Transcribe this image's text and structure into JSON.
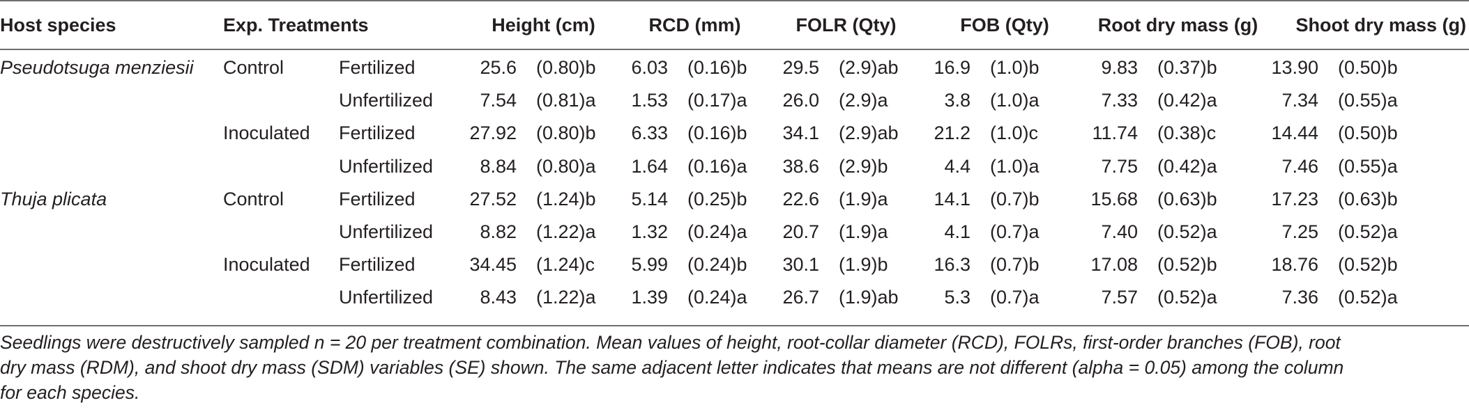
{
  "headers": {
    "host_species": "Host species",
    "treatments": "Exp. Treatments",
    "height": "Height (cm)",
    "rcd": "RCD (mm)",
    "folr": "FOLR (Qty)",
    "fob": "FOB (Qty)",
    "root": "Root dry mass (g)",
    "shoot": "Shoot dry mass (g)"
  },
  "rows": [
    {
      "species": "Pseudotsuga menziesii",
      "treatment": "Control",
      "fert": "Fertilized",
      "h": "25.6",
      "h_se": "(0.80)b",
      "rcd": "6.03",
      "rcd_se": "(0.16)b",
      "folr": "29.5",
      "folr_se": "(2.9)ab",
      "fob": "16.9",
      "fob_se": "(1.0)b",
      "root": "9.83",
      "root_se": "(0.37)b",
      "shoot": "13.90",
      "shoot_se": "(0.50)b"
    },
    {
      "species": "",
      "treatment": "",
      "fert": "Unfertilized",
      "h": "7.54",
      "h_se": "(0.81)a",
      "rcd": "1.53",
      "rcd_se": "(0.17)a",
      "folr": "26.0",
      "folr_se": "(2.9)a",
      "fob": "3.8",
      "fob_se": "(1.0)a",
      "root": "7.33",
      "root_se": "(0.42)a",
      "shoot": "7.34",
      "shoot_se": "(0.55)a"
    },
    {
      "species": "",
      "treatment": "Inoculated",
      "fert": "Fertilized",
      "h": "27.92",
      "h_se": "(0.80)b",
      "rcd": "6.33",
      "rcd_se": "(0.16)b",
      "folr": "34.1",
      "folr_se": "(2.9)ab",
      "fob": "21.2",
      "fob_se": "(1.0)c",
      "root": "11.74",
      "root_se": "(0.38)c",
      "shoot": "14.44",
      "shoot_se": "(0.50)b"
    },
    {
      "species": "",
      "treatment": "",
      "fert": "Unfertilized",
      "h": "8.84",
      "h_se": "(0.80)a",
      "rcd": "1.64",
      "rcd_se": "(0.16)a",
      "folr": "38.6",
      "folr_se": "(2.9)b",
      "fob": "4.4",
      "fob_se": "(1.0)a",
      "root": "7.75",
      "root_se": "(0.42)a",
      "shoot": "7.46",
      "shoot_se": "(0.55)a"
    },
    {
      "species": "Thuja plicata",
      "treatment": "Control",
      "fert": "Fertilized",
      "h": "27.52",
      "h_se": "(1.24)b",
      "rcd": "5.14",
      "rcd_se": "(0.25)b",
      "folr": "22.6",
      "folr_se": "(1.9)a",
      "fob": "14.1",
      "fob_se": "(0.7)b",
      "root": "15.68",
      "root_se": "(0.63)b",
      "shoot": "17.23",
      "shoot_se": "(0.63)b"
    },
    {
      "species": "",
      "treatment": "",
      "fert": "Unfertilized",
      "h": "8.82",
      "h_se": "(1.22)a",
      "rcd": "1.32",
      "rcd_se": "(0.24)a",
      "folr": "20.7",
      "folr_se": "(1.9)a",
      "fob": "4.1",
      "fob_se": "(0.7)a",
      "root": "7.40",
      "root_se": "(0.52)a",
      "shoot": "7.25",
      "shoot_se": "(0.52)a"
    },
    {
      "species": "",
      "treatment": "Inoculated",
      "fert": "Fertilized",
      "h": "34.45",
      "h_se": "(1.24)c",
      "rcd": "5.99",
      "rcd_se": "(0.24)b",
      "folr": "30.1",
      "folr_se": "(1.9)b",
      "fob": "16.3",
      "fob_se": "(0.7)b",
      "root": "17.08",
      "root_se": "(0.52)b",
      "shoot": "18.76",
      "shoot_se": "(0.52)b"
    },
    {
      "species": "",
      "treatment": "",
      "fert": "Unfertilized",
      "h": "8.43",
      "h_se": "(1.22)a",
      "rcd": "1.39",
      "rcd_se": "(0.24)a",
      "folr": "26.7",
      "folr_se": "(1.9)ab",
      "fob": "5.3",
      "fob_se": "(0.7)a",
      "root": "7.57",
      "root_se": "(0.52)a",
      "shoot": "7.36",
      "shoot_se": "(0.52)a"
    }
  ],
  "caption": [
    "Seedlings were destructively sampled n = 20 per treatment combination. Mean values of height, root-collar diameter (RCD), FOLRs, first-order branches (FOB), root",
    "dry mass (RDM), and shoot dry mass (SDM) variables (SE) shown. The same adjacent letter indicates that means are not different (alpha = 0.05) among the column",
    "for each species."
  ]
}
